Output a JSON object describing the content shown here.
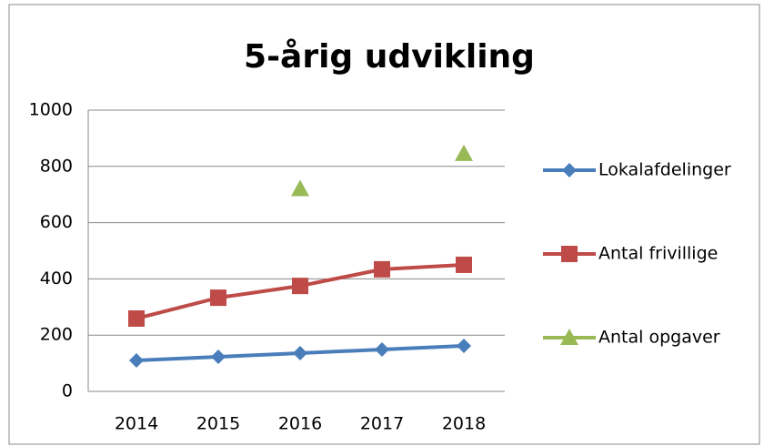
{
  "chart_data": {
    "type": "line",
    "title": "5-årig udvikling",
    "categories": [
      "2014",
      "2015",
      "2016",
      "2017",
      "2018"
    ],
    "series": [
      {
        "name": "Lokalafdelinger",
        "color": "#4a7ebb",
        "marker": "diamond",
        "values": [
          110,
          123,
          136,
          149,
          162
        ]
      },
      {
        "name": "Antal frivillige",
        "color": "#be4b48",
        "marker": "square",
        "values": [
          259,
          333,
          375,
          434,
          450
        ]
      },
      {
        "name": "Antal opgaver",
        "color": "#98b954",
        "marker": "triangle",
        "values": [
          null,
          null,
          720,
          null,
          845
        ]
      }
    ],
    "ylim": [
      0,
      1000
    ],
    "yticks": [
      0,
      200,
      400,
      600,
      800,
      1000
    ],
    "grid": true,
    "legend": "right"
  }
}
